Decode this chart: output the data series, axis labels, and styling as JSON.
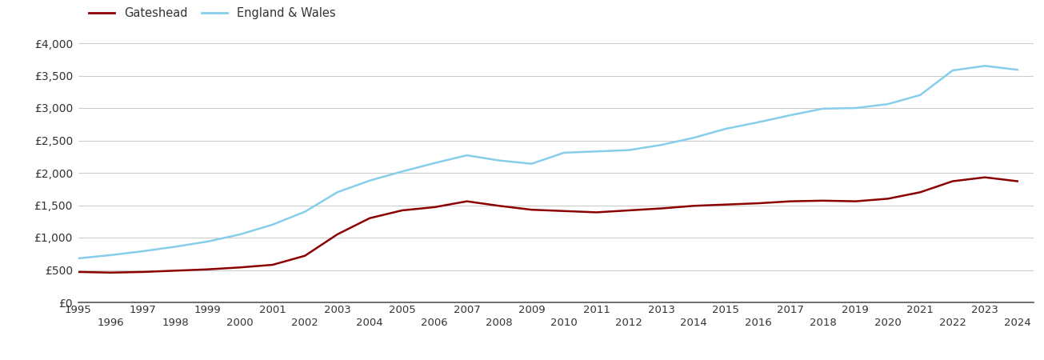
{
  "years": [
    1995,
    1996,
    1997,
    1998,
    1999,
    2000,
    2001,
    2002,
    2003,
    2004,
    2005,
    2006,
    2007,
    2008,
    2009,
    2010,
    2011,
    2012,
    2013,
    2014,
    2015,
    2016,
    2017,
    2018,
    2019,
    2020,
    2021,
    2022,
    2023,
    2024
  ],
  "gateshead": [
    470,
    460,
    470,
    490,
    510,
    540,
    580,
    720,
    1050,
    1300,
    1420,
    1470,
    1560,
    1490,
    1430,
    1410,
    1390,
    1420,
    1450,
    1490,
    1510,
    1530,
    1560,
    1570,
    1560,
    1600,
    1700,
    1870,
    1930,
    1870
  ],
  "england_wales": [
    680,
    730,
    790,
    860,
    940,
    1050,
    1200,
    1400,
    1700,
    1880,
    2020,
    2150,
    2270,
    2190,
    2140,
    2310,
    2330,
    2350,
    2430,
    2540,
    2680,
    2780,
    2890,
    2990,
    3000,
    3060,
    3200,
    3580,
    3650,
    3590
  ],
  "gateshead_color": "#8B0000",
  "england_wales_color": "#87CEEB",
  "background_color": "#ffffff",
  "grid_color": "#cccccc",
  "ylim": [
    0,
    4000
  ],
  "yticks": [
    0,
    500,
    1000,
    1500,
    2000,
    2500,
    3000,
    3500,
    4000
  ],
  "ytick_labels": [
    "£0",
    "£500",
    "£1,000",
    "£1,500",
    "£2,000",
    "£2,500",
    "£3,000",
    "£3,500",
    "£4,000"
  ],
  "legend_gateshead": "Gateshead",
  "legend_england_wales": "England & Wales",
  "line_width": 1.8,
  "odd_years": [
    1995,
    1997,
    1999,
    2001,
    2003,
    2005,
    2007,
    2009,
    2011,
    2013,
    2015,
    2017,
    2019,
    2021,
    2023
  ],
  "even_years": [
    1996,
    1998,
    2000,
    2002,
    2004,
    2006,
    2008,
    2010,
    2012,
    2014,
    2016,
    2018,
    2020,
    2022,
    2024
  ]
}
